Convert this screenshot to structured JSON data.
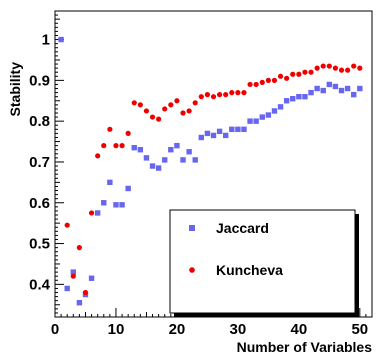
{
  "chart_data": {
    "type": "scatter",
    "xlabel": "Number of Variables",
    "ylabel": "Stability",
    "xlim": [
      0,
      52
    ],
    "ylim": [
      0.32,
      1.07
    ],
    "x_ticks": [
      0,
      10,
      20,
      30,
      40,
      50
    ],
    "y_ticks": [
      0.4,
      0.5,
      0.6,
      0.7,
      0.8,
      0.9,
      1
    ],
    "x_tick_labels": [
      "0",
      "10",
      "20",
      "30",
      "40",
      "50"
    ],
    "y_tick_labels": [
      "0.4",
      "0.5",
      "0.6",
      "0.7",
      "0.8",
      "0.9",
      "1"
    ],
    "legend_position": "bottom-right",
    "series": [
      {
        "name": "Jaccard",
        "color": "#6666ee",
        "marker": "square",
        "x": [
          1,
          2,
          3,
          4,
          5,
          6,
          7,
          8,
          9,
          10,
          11,
          12,
          13,
          14,
          15,
          16,
          17,
          18,
          19,
          20,
          21,
          22,
          23,
          24,
          25,
          26,
          27,
          28,
          29,
          30,
          31,
          32,
          33,
          34,
          35,
          36,
          37,
          38,
          39,
          40,
          41,
          42,
          43,
          44,
          45,
          46,
          47,
          48,
          49,
          50
        ],
        "y": [
          1.0,
          0.39,
          0.43,
          0.355,
          0.375,
          0.415,
          0.575,
          0.6,
          0.65,
          0.595,
          0.595,
          0.635,
          0.735,
          0.73,
          0.71,
          0.69,
          0.685,
          0.705,
          0.73,
          0.74,
          0.705,
          0.725,
          0.705,
          0.76,
          0.77,
          0.765,
          0.775,
          0.765,
          0.78,
          0.78,
          0.78,
          0.8,
          0.8,
          0.81,
          0.815,
          0.825,
          0.835,
          0.85,
          0.855,
          0.86,
          0.86,
          0.87,
          0.88,
          0.875,
          0.89,
          0.885,
          0.875,
          0.88,
          0.865,
          0.88
        ]
      },
      {
        "name": "Kuncheva",
        "color": "#ee0000",
        "marker": "circle",
        "x": [
          1,
          2,
          3,
          4,
          5,
          6,
          7,
          8,
          9,
          10,
          11,
          12,
          13,
          14,
          15,
          16,
          17,
          18,
          19,
          20,
          21,
          22,
          23,
          24,
          25,
          26,
          27,
          28,
          29,
          30,
          31,
          32,
          33,
          34,
          35,
          36,
          37,
          38,
          39,
          40,
          41,
          42,
          43,
          44,
          45,
          46,
          47,
          48,
          49,
          50
        ],
        "y": [
          null,
          0.545,
          0.42,
          0.49,
          0.38,
          0.575,
          0.715,
          0.74,
          0.78,
          0.74,
          0.74,
          0.77,
          0.845,
          0.84,
          0.825,
          0.81,
          0.805,
          0.83,
          0.84,
          0.85,
          0.82,
          0.825,
          0.845,
          0.86,
          0.865,
          0.86,
          0.865,
          0.865,
          0.87,
          0.87,
          0.87,
          0.89,
          0.89,
          0.895,
          0.9,
          0.9,
          0.91,
          0.905,
          0.915,
          0.915,
          0.92,
          0.92,
          0.93,
          0.935,
          0.935,
          0.93,
          0.925,
          0.925,
          0.935,
          0.93
        ]
      }
    ]
  }
}
